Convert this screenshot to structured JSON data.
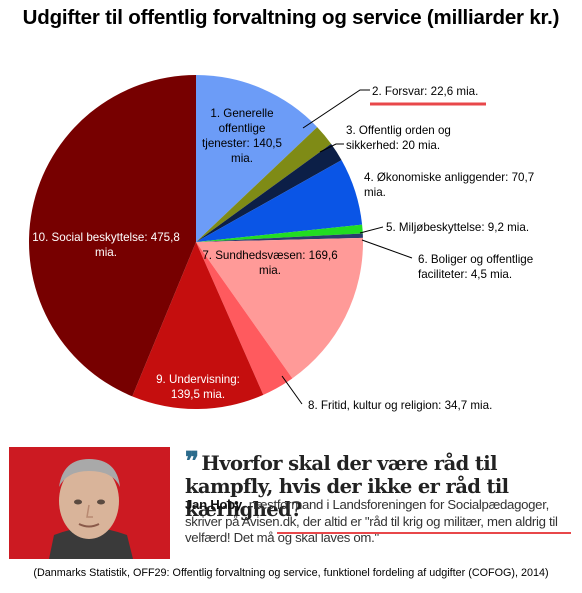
{
  "chart_data": {
    "type": "pie",
    "title": "Udgifter til offentlig forvaltning og service (milliarder kr.)",
    "slices": [
      {
        "label": "1. Generelle offentlige tjenester: 140,5 mia.",
        "value": 140.5,
        "color": "#6c9cf7"
      },
      {
        "label": "2. Forsvar: 22,6 mia.",
        "value": 22.6,
        "color": "#7f8b16"
      },
      {
        "label": "3. Offentlig orden og sikkerhed: 20 mia.",
        "value": 20,
        "color": "#0c1f47"
      },
      {
        "label": "4. Økonomiske anliggender: 70,7 mia.",
        "value": 70.7,
        "color": "#0a55e6"
      },
      {
        "label": "5. Miljøbeskyttelse: 9,2 mia.",
        "value": 9.2,
        "color": "#22dd22"
      },
      {
        "label": "6. Boliger og offentlige faciliteter: 4,5 mia.",
        "value": 4.5,
        "color": "#2a3d6e"
      },
      {
        "label": "7. Sundhedsvæsen: 169,6 mia.",
        "value": 169.6,
        "color": "#ff9a98"
      },
      {
        "label": "8. Fritid, kultur og religion: 34,7 mia.",
        "value": 34.7,
        "color": "#ff5a5e"
      },
      {
        "label": "9. Undervisning: 139,5 mia.",
        "value": 139.5,
        "color": "#c50e0e"
      },
      {
        "label": "10. Social beskyttelse: 475,8 mia.",
        "value": 475.8,
        "color": "#770000"
      }
    ],
    "labels": {
      "s1": [
        "1. Generelle",
        "offentlige",
        "tjenester: 140,5",
        "mia."
      ],
      "s2": [
        "2. Forsvar: 22,6 mia."
      ],
      "s3": [
        "3. Offentlig orden og",
        "sikkerhed: 20 mia."
      ],
      "s4": [
        "4. Økonomiske anliggender: 70,7",
        "mia."
      ],
      "s5": [
        "5. Miljøbeskyttelse: 9,2 mia."
      ],
      "s6": [
        "6. Boliger og offentlige",
        "faciliteter: 4,5 mia."
      ],
      "s7": [
        "7. Sundhedsvæsen: 169,6",
        "mia."
      ],
      "s8": [
        "8. Fritid, kultur og religion: 34,7 mia."
      ],
      "s9": [
        "9. Undervisning:",
        "139,5 mia."
      ],
      "s10": [
        "10. Social beskyttelse: 475,8",
        "mia."
      ]
    },
    "legend": "none",
    "highlight_color": "#e8474a"
  },
  "quote": {
    "headline": "Hvorfor skal der være råd til kampfly, hvis der ikke er råd til kærlighed?",
    "author": "Jan Hoby",
    "body_part1": ", næstformand i Landsforeningen for Socialpædagoger, skriver på Avisen.dk, der ",
    "body_highlight": "altid er \"råd til krig og militær, men aldrig til velfærd!",
    "body_part2": " Det må og skal laves om.\""
  },
  "source": "(Danmarks Statistik, OFF29: Offentlig forvaltning og service, funktionel fordeling af udgifter (COFOG), 2014)"
}
